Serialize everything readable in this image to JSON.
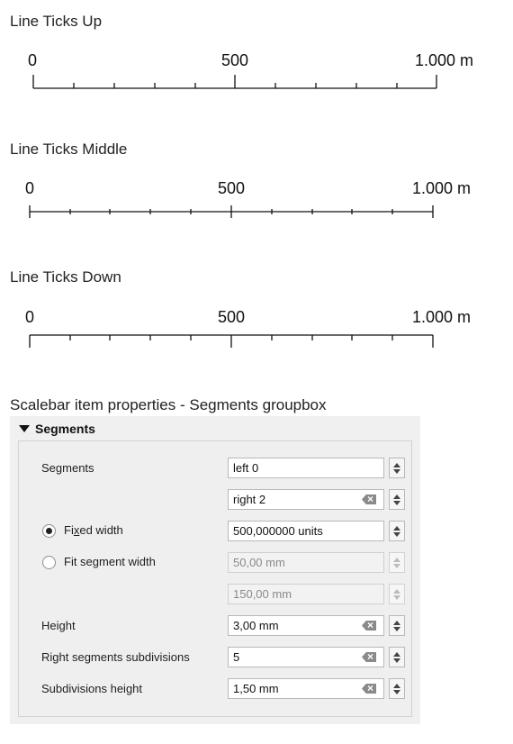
{
  "scalebars": [
    {
      "caption": "Line Ticks Up",
      "labels": {
        "start": "0",
        "mid": "500",
        "end": "1.000 m"
      }
    },
    {
      "caption": "Line Ticks Middle",
      "labels": {
        "start": "0",
        "mid": "500",
        "end": "1.000 m"
      }
    },
    {
      "caption": "Line Ticks Down",
      "labels": {
        "start": "0",
        "mid": "500",
        "end": "1.000 m"
      }
    }
  ],
  "panel": {
    "caption": "Scalebar item properties - Segments groupbox",
    "group_title": "Segments",
    "segments_label": "Segments",
    "segments_left_value": "left 0",
    "segments_right_value": "right 2",
    "fixed_width_label_pre": "Fi",
    "fixed_width_label_u": "x",
    "fixed_width_label_post": "ed width",
    "fixed_width_value": "500,000000 units",
    "fit_segment_width_label": "Fit segment width",
    "fit_min_value": "50,00 mm",
    "fit_max_value": "150,00 mm",
    "height_label": "Height",
    "height_value": "3,00 mm",
    "right_subdivisions_label": "Right segments subdivisions",
    "right_subdivisions_value": "5",
    "subdivisions_height_label": "Subdivisions height",
    "subdivisions_height_value": "1,50 mm"
  }
}
